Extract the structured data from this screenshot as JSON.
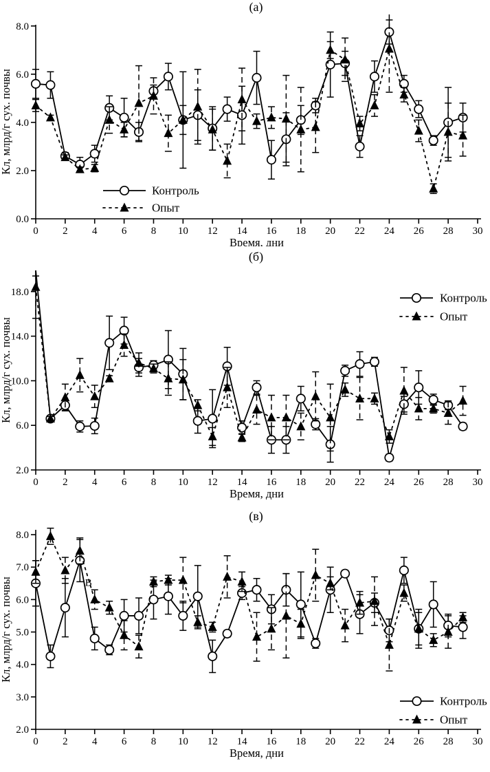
{
  "figure": {
    "background": "#ffffff",
    "foreground": "#000000",
    "x_days": [
      0,
      1,
      2,
      3,
      4,
      5,
      6,
      7,
      8,
      9,
      10,
      11,
      12,
      13,
      14,
      15,
      16,
      17,
      18,
      19,
      20,
      21,
      22,
      23,
      24,
      25,
      26,
      27,
      28,
      29
    ]
  },
  "series_labels": {
    "control": "Контроль",
    "experiment": "Опыт"
  },
  "chart_data": [
    {
      "id": "a",
      "type": "line",
      "title": "(a)",
      "xlabel": "Время, дни",
      "ylabel": "Кл, млрд/г сух. почвы",
      "xlim": [
        0,
        30
      ],
      "x_ticks": [
        0,
        2,
        4,
        6,
        8,
        10,
        12,
        14,
        16,
        18,
        20,
        22,
        24,
        26,
        28,
        30
      ],
      "ylim": [
        0,
        8
      ],
      "y_ticks": [
        0,
        2,
        4,
        6,
        8
      ],
      "grid": false,
      "legend_position": "bottom-left-inside",
      "series": [
        {
          "name": "Контроль",
          "marker": "circle-open",
          "line": "solid",
          "values": [
            5.6,
            5.55,
            2.6,
            2.25,
            2.7,
            4.6,
            4.2,
            3.6,
            5.3,
            5.9,
            4.1,
            4.3,
            3.75,
            4.55,
            4.3,
            5.85,
            2.45,
            3.3,
            4.1,
            4.7,
            6.4,
            6.45,
            3.0,
            5.9,
            7.75,
            5.6,
            4.55,
            3.25,
            4.0,
            4.2
          ],
          "errors": [
            0.6,
            0.55,
            0.15,
            0.3,
            0.35,
            0.5,
            0.8,
            0.4,
            0.25,
            0.55,
            2.0,
            1.05,
            0.9,
            0.5,
            1.2,
            1.1,
            0.8,
            1.1,
            0.6,
            0.3,
            1.35,
            0.5,
            0.45,
            0.65,
            0.5,
            0.35,
            0.35,
            0.2,
            1.45,
            0.6
          ]
        },
        {
          "name": "Опыт",
          "marker": "triangle-filled",
          "line": "dotted",
          "values": [
            4.7,
            4.2,
            2.55,
            2.05,
            2.1,
            4.1,
            3.7,
            4.8,
            5.1,
            3.55,
            4.1,
            4.65,
            3.7,
            2.4,
            4.95,
            4.05,
            4.2,
            4.15,
            3.7,
            3.8,
            7.0,
            6.6,
            3.95,
            4.7,
            7.05,
            5.15,
            3.65,
            1.25,
            3.6,
            3.45
          ],
          "errors": [
            0.25,
            0.1,
            0.1,
            0.1,
            0.15,
            0.55,
            0.3,
            1.55,
            0.75,
            0.75,
            0.6,
            1.55,
            0.85,
            0.7,
            1.3,
            0.3,
            0.45,
            1.8,
            1.75,
            1.05,
            0.35,
            0.9,
            0.3,
            0.45,
            1.8,
            0.3,
            0.45,
            0.2,
            1.2,
            0.85
          ]
        }
      ],
      "annotations": []
    },
    {
      "id": "b",
      "type": "line",
      "title": "(б)",
      "xlabel": "Время, дни",
      "ylabel": "Кл, млрд/г сух. почвы",
      "xlim": [
        0,
        30
      ],
      "x_ticks": [
        0,
        2,
        4,
        6,
        8,
        10,
        12,
        14,
        16,
        18,
        20,
        22,
        24,
        26,
        28,
        30
      ],
      "ylim": [
        2,
        18
      ],
      "y_ticks": [
        2,
        6,
        10,
        14,
        18
      ],
      "grid": false,
      "legend_position": "top-right-inside",
      "series": [
        {
          "name": "Контроль",
          "marker": "circle-open",
          "line": "solid",
          "marker_skip": [
            0
          ],
          "values": [
            19.9,
            6.6,
            7.8,
            5.9,
            5.95,
            13.4,
            14.5,
            11.2,
            11.4,
            11.9,
            10.6,
            6.4,
            6.6,
            11.3,
            5.8,
            9.4,
            4.7,
            4.7,
            8.4,
            6.1,
            4.3,
            10.9,
            11.5,
            11.7,
            3.1,
            7.9,
            9.4,
            8.3,
            7.8,
            5.9
          ],
          "errors": [
            0.5,
            0.2,
            0.45,
            0.5,
            0.7,
            2.4,
            1.2,
            0.8,
            0.4,
            2.6,
            2.3,
            1.1,
            2.6,
            1.7,
            0.6,
            0.6,
            1.2,
            1.2,
            1.1,
            0.5,
            1.6,
            0.5,
            1.1,
            0.4,
            0.3,
            0.7,
            1.5,
            0.5,
            0.4,
            0.3
          ]
        },
        {
          "name": "Опыт",
          "marker": "triangle-filled",
          "line": "dotted",
          "values": [
            18.4,
            6.6,
            8.5,
            10.5,
            8.6,
            10.2,
            13.2,
            11.6,
            11.1,
            10.2,
            10.1,
            7.8,
            5.0,
            9.4,
            4.9,
            7.4,
            6.7,
            6.7,
            5.9,
            8.6,
            6.7,
            9.2,
            8.4,
            8.4,
            5.0,
            9.1,
            7.5,
            7.5,
            7.1,
            8.2
          ],
          "errors": [
            2.8,
            0.2,
            1.2,
            1.5,
            1.0,
            0.25,
            1.0,
            0.9,
            0.4,
            1.5,
            1.8,
            0.5,
            0.8,
            1.8,
            0.35,
            1.3,
            2.0,
            2.0,
            1.2,
            2.2,
            3.0,
            0.6,
            1.9,
            0.5,
            0.6,
            2.1,
            1.0,
            0.4,
            1.0,
            1.3
          ]
        }
      ],
      "annotations": []
    },
    {
      "id": "v",
      "type": "line",
      "title": "(в)",
      "xlabel": "Время, дни",
      "ylabel": "Кл, млрд/г сух. почвы",
      "xlim": [
        0,
        30
      ],
      "x_ticks": [
        0,
        2,
        4,
        6,
        8,
        10,
        12,
        14,
        16,
        18,
        20,
        22,
        24,
        26,
        28,
        30
      ],
      "ylim": [
        2,
        8
      ],
      "y_ticks": [
        2,
        3,
        4,
        5,
        6,
        7,
        8
      ],
      "grid": false,
      "legend_position": "bottom-right-inside",
      "series": [
        {
          "name": "Контроль",
          "marker": "circle-open",
          "line": "solid",
          "values": [
            6.5,
            4.25,
            5.75,
            7.2,
            4.8,
            4.45,
            5.5,
            5.5,
            6.0,
            6.1,
            5.5,
            6.1,
            4.25,
            4.95,
            6.2,
            6.3,
            5.7,
            6.3,
            5.85,
            4.65,
            6.3,
            6.8,
            5.55,
            5.9,
            5.05,
            6.9,
            5.1,
            5.85,
            5.2,
            5.15
          ],
          "errors": [
            0.7,
            0.35,
            0.9,
            0.65,
            0.35,
            0.15,
            0.5,
            0.55,
            0.6,
            0.55,
            0.45,
            0.95,
            0.5,
            0.1,
            0.2,
            0.35,
            0.45,
            0.5,
            1.0,
            0.15,
            0.7,
            0.1,
            0.6,
            0.3,
            0.35,
            0.4,
            0.6,
            0.7,
            0.35,
            0.35
          ]
        },
        {
          "name": "Опыт",
          "marker": "triangle-filled",
          "line": "dotted",
          "values": [
            6.85,
            7.95,
            6.9,
            7.5,
            6.0,
            5.75,
            4.9,
            4.55,
            6.55,
            6.6,
            6.6,
            5.3,
            5.15,
            6.7,
            6.55,
            4.85,
            5.1,
            5.5,
            5.25,
            6.75,
            6.5,
            5.2,
            5.9,
            5.95,
            4.6,
            6.2,
            5.1,
            4.75,
            5.0,
            5.45
          ],
          "errors": [
            0.35,
            0.25,
            0.4,
            0.4,
            0.3,
            0.2,
            0.45,
            0.35,
            0.15,
            0.15,
            0.7,
            0.2,
            0.15,
            0.65,
            0.3,
            0.75,
            0.65,
            1.3,
            0.45,
            0.8,
            0.2,
            0.5,
            0.35,
            0.75,
            0.8,
            0.25,
            0.5,
            0.2,
            0.5,
            0.15
          ]
        }
      ],
      "annotations": [
        {
          "text": "В",
          "x": 3.35,
          "y": 6.42
        }
      ]
    }
  ]
}
